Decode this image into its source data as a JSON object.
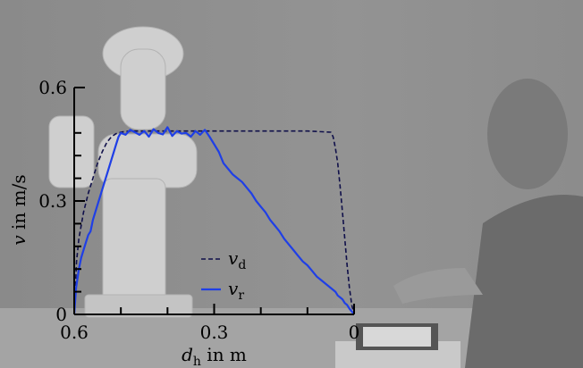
{
  "chart_data": {
    "type": "line",
    "xlabel": "d_h in m",
    "ylabel": "v in m/s",
    "x_reversed": true,
    "xlim": [
      0.6,
      0.0
    ],
    "ylim": [
      0.0,
      0.6
    ],
    "x_ticks": [
      {
        "value": 0.6,
        "label": "0.6"
      },
      {
        "value": 0.3,
        "label": "0.3"
      },
      {
        "value": 0.0,
        "label": "0"
      }
    ],
    "x_minor_ticks": [
      0.5,
      0.4,
      0.2,
      0.1
    ],
    "y_ticks": [
      {
        "value": 0.0,
        "label": "0"
      },
      {
        "value": 0.3,
        "label": "0.3"
      },
      {
        "value": 0.6,
        "label": "0.6"
      }
    ],
    "y_minor_ticks": [
      0.06,
      0.12,
      0.18,
      0.24,
      0.36,
      0.42,
      0.48
    ],
    "grid": false,
    "legend_position": "lower-center",
    "series": [
      {
        "name": "v_d",
        "name_main": "v",
        "name_sub": "d",
        "color": "#10104a",
        "dash": true,
        "x": [
          0.6,
          0.595,
          0.59,
          0.58,
          0.57,
          0.56,
          0.55,
          0.54,
          0.53,
          0.52,
          0.51,
          0.5,
          0.49,
          0.48,
          0.4,
          0.3,
          0.2,
          0.1,
          0.05,
          0.045,
          0.04,
          0.035,
          0.03,
          0.025,
          0.02,
          0.015,
          0.01,
          0.005,
          0.0
        ],
        "y": [
          0.0,
          0.14,
          0.2,
          0.27,
          0.32,
          0.36,
          0.4,
          0.43,
          0.455,
          0.47,
          0.478,
          0.482,
          0.484,
          0.485,
          0.485,
          0.485,
          0.485,
          0.485,
          0.482,
          0.47,
          0.44,
          0.4,
          0.34,
          0.27,
          0.2,
          0.13,
          0.07,
          0.025,
          0.0
        ]
      },
      {
        "name": "v_r",
        "name_main": "v",
        "name_sub": "r",
        "color": "#1f3fe6",
        "dash": false,
        "x": [
          0.6,
          0.596,
          0.59,
          0.585,
          0.58,
          0.575,
          0.57,
          0.565,
          0.56,
          0.555,
          0.55,
          0.545,
          0.54,
          0.535,
          0.53,
          0.525,
          0.52,
          0.515,
          0.51,
          0.505,
          0.5,
          0.49,
          0.48,
          0.47,
          0.46,
          0.45,
          0.44,
          0.43,
          0.42,
          0.41,
          0.4,
          0.39,
          0.38,
          0.37,
          0.36,
          0.35,
          0.34,
          0.33,
          0.32,
          0.31,
          0.3,
          0.29,
          0.28,
          0.27,
          0.26,
          0.25,
          0.24,
          0.23,
          0.22,
          0.21,
          0.2,
          0.19,
          0.18,
          0.17,
          0.16,
          0.15,
          0.14,
          0.13,
          0.12,
          0.11,
          0.1,
          0.09,
          0.08,
          0.07,
          0.06,
          0.05,
          0.04,
          0.035,
          0.03,
          0.025,
          0.02,
          0.015,
          0.01,
          0.005,
          0.0
        ],
        "y": [
          0.0,
          0.07,
          0.12,
          0.15,
          0.17,
          0.19,
          0.21,
          0.22,
          0.25,
          0.27,
          0.29,
          0.31,
          0.33,
          0.35,
          0.37,
          0.39,
          0.41,
          0.43,
          0.45,
          0.47,
          0.48,
          0.475,
          0.488,
          0.482,
          0.475,
          0.485,
          0.47,
          0.49,
          0.48,
          0.476,
          0.495,
          0.472,
          0.485,
          0.478,
          0.48,
          0.47,
          0.485,
          0.475,
          0.488,
          0.47,
          0.45,
          0.43,
          0.4,
          0.385,
          0.37,
          0.36,
          0.35,
          0.335,
          0.32,
          0.3,
          0.285,
          0.27,
          0.25,
          0.235,
          0.22,
          0.2,
          0.185,
          0.17,
          0.155,
          0.14,
          0.13,
          0.115,
          0.1,
          0.09,
          0.08,
          0.07,
          0.06,
          0.05,
          0.045,
          0.04,
          0.03,
          0.025,
          0.015,
          0.008,
          0.0
        ]
      }
    ]
  }
}
